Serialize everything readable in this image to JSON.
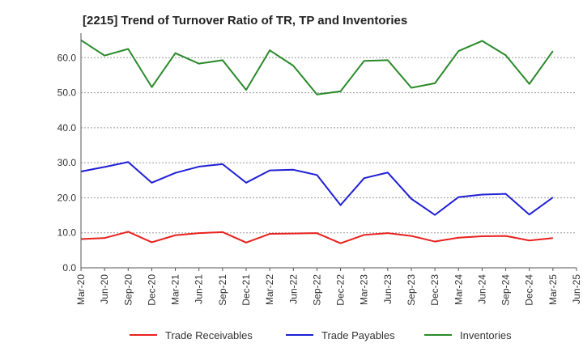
{
  "chart_data": {
    "type": "line",
    "title": "[2215]  Trend of Turnover Ratio of TR, TP and Inventories",
    "xlabel": "",
    "ylabel": "",
    "ylim": [
      0,
      67
    ],
    "yticks": [
      "0.0",
      "10.0",
      "20.0",
      "30.0",
      "40.0",
      "50.0",
      "60.0"
    ],
    "ytick_values": [
      0,
      10,
      20,
      30,
      40,
      50,
      60
    ],
    "grid": "horizontal dashed",
    "legend_position": "bottom",
    "xticks": [
      "Mar-20",
      "Jun-20",
      "Sep-20",
      "Dec-20",
      "Mar-21",
      "Jun-21",
      "Sep-21",
      "Dec-21",
      "Mar-22",
      "Jun-22",
      "Sep-22",
      "Dec-22",
      "Mar-23",
      "Jun-23",
      "Sep-23",
      "Dec-23",
      "Mar-24",
      "Jun-24",
      "Sep-24",
      "Dec-24",
      "Mar-25",
      "Jun-25"
    ],
    "x": [
      "Mar-20",
      "Jun-20",
      "Sep-20",
      "Dec-20",
      "Mar-21",
      "Jun-21",
      "Sep-21",
      "Dec-21",
      "Mar-22",
      "Jun-22",
      "Sep-22",
      "Dec-22",
      "Mar-23",
      "Jun-23",
      "Sep-23",
      "Dec-23",
      "Mar-24",
      "Jun-24",
      "Sep-24",
      "Dec-24",
      "Mar-25"
    ],
    "series": [
      {
        "name": "Trade Receivables",
        "color": "#e8211d",
        "values": [
          8.2,
          8.5,
          10.3,
          7.3,
          9.3,
          9.9,
          10.2,
          7.2,
          9.7,
          9.8,
          9.9,
          7.0,
          9.4,
          9.9,
          9.1,
          7.5,
          8.6,
          9.0,
          9.1,
          7.8,
          8.5
        ]
      },
      {
        "name": "Trade Payables",
        "color": "#1f1fd6",
        "values": [
          27.5,
          28.8,
          30.2,
          24.3,
          27.1,
          28.9,
          29.6,
          24.3,
          27.8,
          28.0,
          26.5,
          17.9,
          25.6,
          27.2,
          19.7,
          15.1,
          20.2,
          20.9,
          21.1,
          15.2,
          20.1
        ]
      },
      {
        "name": "Inventories",
        "color": "#2a8a2a",
        "values": [
          65.0,
          60.6,
          62.5,
          51.6,
          61.3,
          58.3,
          59.3,
          50.8,
          62.1,
          57.7,
          49.5,
          50.4,
          59.1,
          59.3,
          51.4,
          52.7,
          61.9,
          64.8,
          60.7,
          52.5,
          61.9
        ]
      }
    ]
  }
}
